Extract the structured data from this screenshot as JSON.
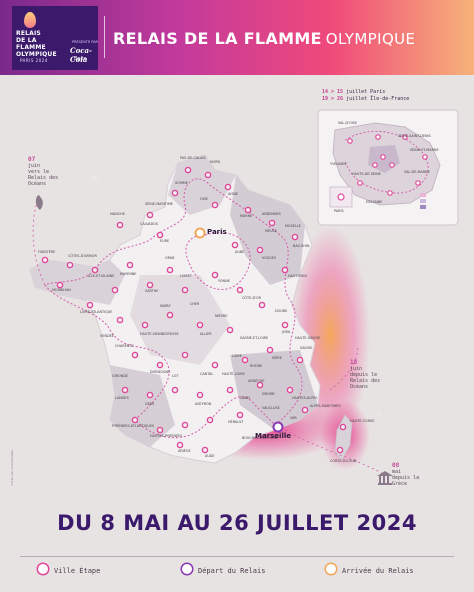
{
  "header": {
    "logo_lines": [
      "RELAIS",
      "DE LA FLAMME",
      "OLYMPIQUE"
    ],
    "logo_sub": "PARIS 2024",
    "sponsor_label": "PRÉSENTÉ PAR",
    "sponsor": "Coca-Cola",
    "sponsor2": "Bpce",
    "title_bold": "RELAIS DE LA FLAMME",
    "title_light": "OLYMPIQUE"
  },
  "colors": {
    "purple": "#3b1a6b",
    "pink": "#e0489a",
    "orange": "#f2a65a",
    "route": "#d45aa8"
  },
  "inset": {
    "line1_days": "14 > 15",
    "line1_text": "juillet Paris",
    "line2_days": "19 > 26",
    "line2_text": "juillet Île-de-France",
    "labels": [
      "VAL-D'OISE",
      "YVELINES",
      "ESSONNE",
      "HAUTS-DE-SEINE",
      "SEINE-SAINT-DENIS",
      "VAL-DE-MARNE",
      "SEINE-ET-MARNE",
      "PARIS"
    ]
  },
  "annotations": {
    "west": {
      "day": "07",
      "month": "juin",
      "text": "vers le Relais des Océans"
    },
    "east": {
      "day": "18",
      "month": "juin",
      "text": "depuis le Relais des Océans"
    },
    "south": {
      "day": "08",
      "month": "mai",
      "text": "depuis la Grèce"
    }
  },
  "cities": {
    "paris": "Paris",
    "marseille": "Marseille",
    "labels": [
      "PAS-DE-CALAIS",
      "NORD",
      "SOMME",
      "AISNE",
      "OISE",
      "SEINE-MARITIME",
      "MANCHE",
      "CALVADOS",
      "EURE",
      "FINISTÈRE",
      "CÔTES-D'ARMOR",
      "MORBIHAN",
      "ILLE-ET-VILAINE",
      "LOIRE-ATLANTIQUE",
      "VENDÉE",
      "MAYENNE",
      "SARTHE",
      "ORNE",
      "MARNE",
      "ARDENNES",
      "MEUSE",
      "MOSELLE",
      "BAS-RHIN",
      "HAUT-RHIN",
      "VOSGES",
      "AUBE",
      "YONNE",
      "LOIRET",
      "INDRE",
      "CHER",
      "NIÈVRE",
      "CÔTE-D'OR",
      "DOUBS",
      "JURA",
      "SAÔNE-ET-LOIRE",
      "ALLIER",
      "CREUSE",
      "HAUTE-VIENNE",
      "CHARENTE",
      "DORDOGNE",
      "GIRONDE",
      "LANDES",
      "GERS",
      "PYRÉNÉES-ATLANTIQUES",
      "HAUTES-PYRÉNÉES",
      "ARIÈGE",
      "AUDE",
      "HÉRAULT",
      "GARD",
      "AVEYRON",
      "LOT",
      "CANTAL",
      "HAUTE-LOIRE",
      "LOIRE",
      "RHÔNE",
      "ISÈRE",
      "SAVOIE",
      "HAUTE-SAVOIE",
      "DRÔME",
      "ARDÈCHE",
      "VAUCLUSE",
      "HAUTES-ALPES",
      "VAR",
      "ALPES-MARITIMES",
      "CORSE-DU-SUD",
      "HAUTE-CORSE",
      "BOUCHES-DU-RHÔNE"
    ]
  },
  "dates": "DU 8 MAI AU 26 JUILLET 2024",
  "legend": [
    {
      "label": "Ville Étape",
      "color": "#e0489a"
    },
    {
      "label": "Départ du Relais",
      "color": "#8a3ab0"
    },
    {
      "label": "Arrivée du Relais",
      "color": "#f2a65a"
    }
  ],
  "side_note": "Carte non contractuelle"
}
